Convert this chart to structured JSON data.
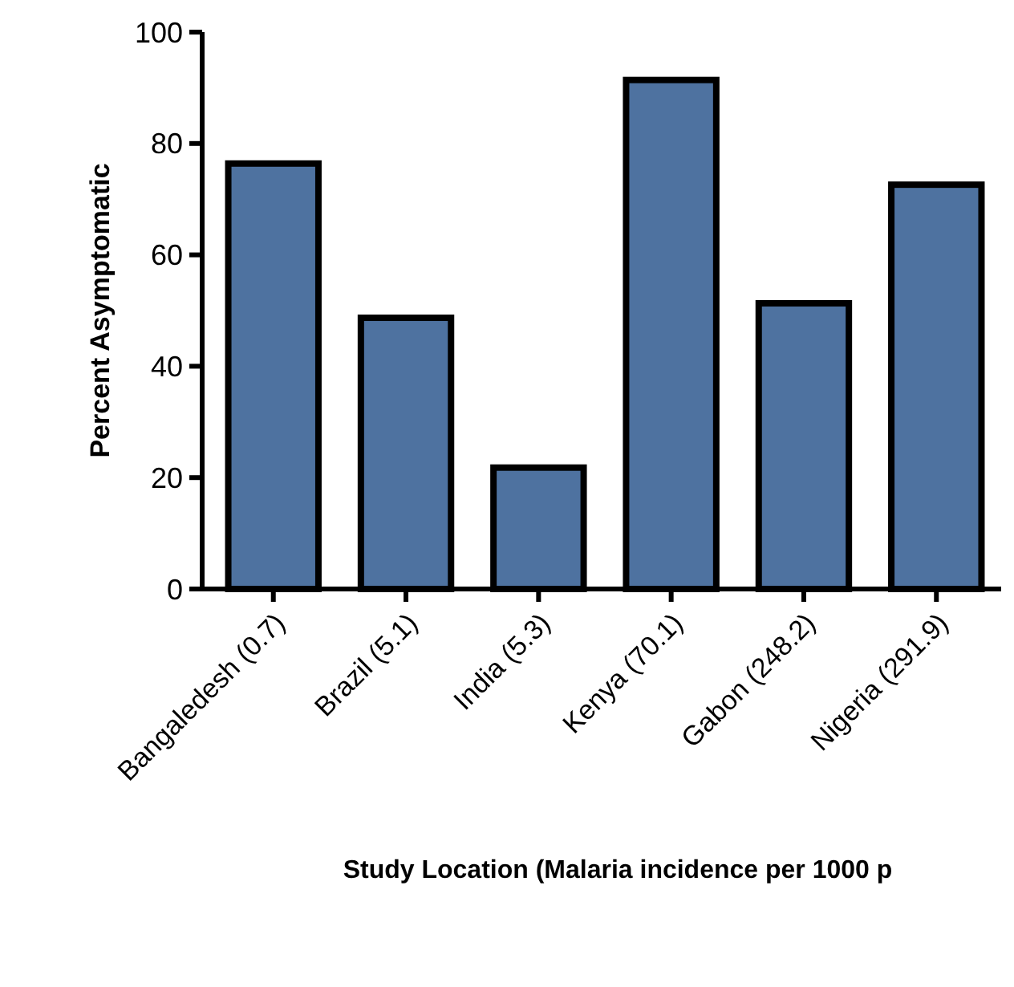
{
  "chart_data": {
    "type": "bar",
    "xlabel": "Study Location (Malaria incidence per 1000 p",
    "ylabel": "Percent Asymptomatic",
    "categories": [
      "Bangaledesh (0.7)",
      "Brazil (5.1)",
      "India (5.3)",
      "Kenya (70.1)",
      "Gabon (248.2)",
      "Nigeria (291.9)"
    ],
    "values": [
      76.4,
      48.7,
      21.8,
      91.4,
      51.3,
      72.6
    ],
    "color": "#4e72a0",
    "ylim": [
      0,
      100
    ],
    "yticks": [
      0,
      20,
      40,
      60,
      80,
      100
    ],
    "grid": false
  }
}
